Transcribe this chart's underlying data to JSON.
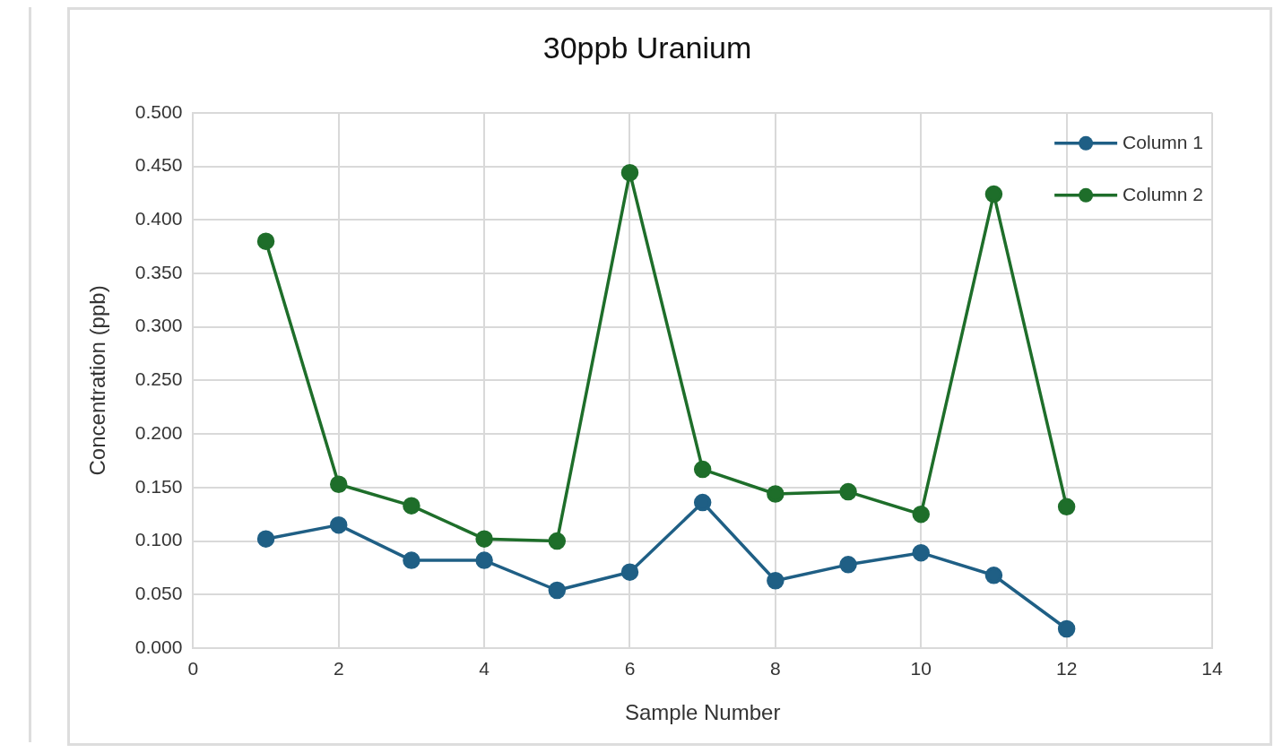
{
  "chart_data": {
    "type": "line",
    "title": "30ppb Uranium",
    "xlabel": "Sample Number",
    "ylabel": "Concentration (ppb)",
    "x": [
      1,
      2,
      3,
      4,
      5,
      6,
      7,
      8,
      9,
      10,
      11,
      12
    ],
    "series": [
      {
        "name": "Column 1",
        "color": "#1f5f85",
        "values": [
          0.102,
          0.115,
          0.082,
          0.082,
          0.054,
          0.071,
          0.136,
          0.063,
          0.078,
          0.089,
          0.068,
          0.018
        ]
      },
      {
        "name": "Column 2",
        "color": "#1e6e2a",
        "values": [
          0.38,
          0.153,
          0.133,
          0.102,
          0.1,
          0.444,
          0.167,
          0.144,
          0.146,
          0.125,
          0.424,
          0.132
        ]
      }
    ],
    "xlim": [
      0,
      14
    ],
    "xticks": [
      0,
      2,
      4,
      6,
      8,
      10,
      12,
      14
    ],
    "ylim": [
      0,
      0.5
    ],
    "yticks": [
      {
        "value": 0,
        "label": "0.000"
      },
      {
        "value": 0.05,
        "label": "0.050"
      },
      {
        "value": 0.1,
        "label": "0.100"
      },
      {
        "value": 0.15,
        "label": "0.150"
      },
      {
        "value": 0.2,
        "label": "0.200"
      },
      {
        "value": 0.25,
        "label": "0.250"
      },
      {
        "value": 0.3,
        "label": "0.300"
      },
      {
        "value": 0.35,
        "label": "0.350"
      },
      {
        "value": 0.4,
        "label": "0.400"
      },
      {
        "value": 0.45,
        "label": "0.450"
      },
      {
        "value": 0.5,
        "label": "0.500"
      }
    ],
    "grid": true,
    "legend": "top right",
    "marker": "circle",
    "line_style": "solid"
  }
}
